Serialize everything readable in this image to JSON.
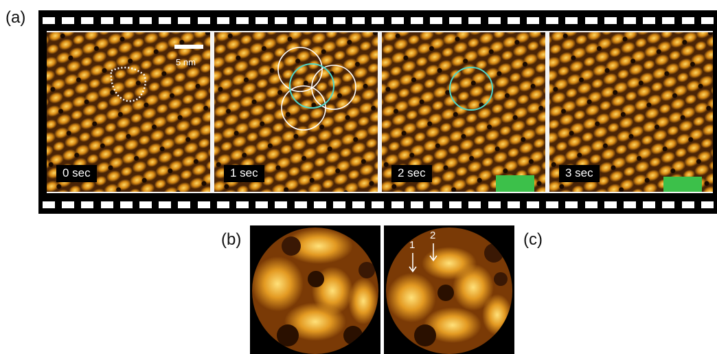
{
  "figure": {
    "panel_labels": {
      "a": "(a)",
      "b": "(b)",
      "c": "(c)"
    },
    "frames": [
      {
        "time_label": "0 sec",
        "scale_label": "5 nm",
        "has_scalebar": true,
        "has_green_mark": false
      },
      {
        "time_label": "1 sec",
        "has_scalebar": false,
        "has_green_mark": false
      },
      {
        "time_label": "2 sec",
        "has_scalebar": false,
        "has_green_mark": true
      },
      {
        "time_label": "3 sec",
        "has_scalebar": false,
        "has_green_mark": true
      }
    ],
    "arrow_labels": [
      "1",
      "2"
    ],
    "colors": {
      "film": "#000000",
      "sprocket": "#ffffff",
      "afm_dark": "#3a1c04",
      "afm_mid": "#c87810",
      "afm_bright": "#ffcf55",
      "circle_white": "#ffffff",
      "circle_cyan": "#4fd6c8",
      "green_mark": "#3cc04a"
    }
  }
}
